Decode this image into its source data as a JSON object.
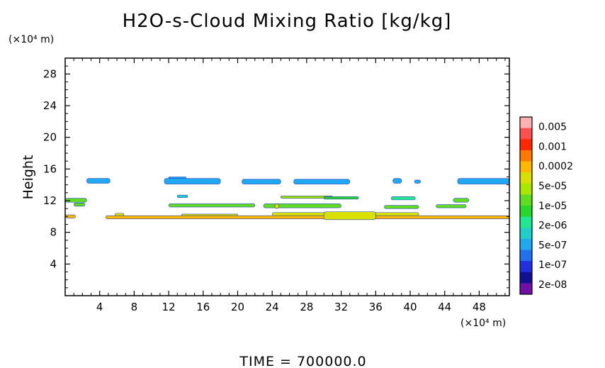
{
  "chart_data": {
    "type": "heatmap",
    "title": "H2O-s-Cloud Mixing Ratio [kg/kg]",
    "ylabel": "Height",
    "xlabel": "",
    "x_unit": "(×10⁴ m)",
    "y_unit": "(×10⁴ m)",
    "xlim": [
      0,
      51.5
    ],
    "ylim": [
      0,
      30
    ],
    "x_ticks": [
      4,
      8,
      12,
      16,
      20,
      24,
      28,
      32,
      36,
      40,
      44,
      48
    ],
    "y_ticks": [
      4,
      8,
      12,
      16,
      20,
      24,
      28
    ],
    "footer": "TIME = 700000.0",
    "colorbar": {
      "labels": [
        "0.005",
        "0.001",
        "0.0002",
        "5e-05",
        "1e-05",
        "2e-06",
        "5e-07",
        "1e-07",
        "2e-08"
      ],
      "colors": [
        "#ffb0b0",
        "#ff5050",
        "#ff2800",
        "#ff7800",
        "#ffb800",
        "#d8e000",
        "#a8e800",
        "#60dd20",
        "#28d828",
        "#20e890",
        "#20d0c8",
        "#20a8f0",
        "#2070f0",
        "#2030e0",
        "#101090",
        "#7010a8"
      ]
    },
    "regions": [
      {
        "x0": 0.0,
        "x1": 1.2,
        "y0": 9.8,
        "y1": 10.2,
        "level": 4
      },
      {
        "x0": 4.7,
        "x1": 51.5,
        "y0": 9.7,
        "y1": 10.1,
        "level": 4
      },
      {
        "x0": 5.8,
        "x1": 6.8,
        "y0": 10.1,
        "y1": 10.4,
        "level": 5
      },
      {
        "x0": 13.5,
        "x1": 20.0,
        "y0": 10.1,
        "y1": 10.3,
        "level": 5
      },
      {
        "x0": 24.0,
        "x1": 41.0,
        "y0": 10.1,
        "y1": 10.5,
        "level": 5
      },
      {
        "x0": 30.0,
        "x1": 36.0,
        "y0": 9.6,
        "y1": 10.6,
        "level": 5
      },
      {
        "x0": 0.0,
        "x1": 2.5,
        "y0": 11.8,
        "y1": 12.3,
        "level": 7
      },
      {
        "x0": 1.0,
        "x1": 2.3,
        "y0": 11.3,
        "y1": 11.7,
        "level": 7
      },
      {
        "x0": 12.0,
        "x1": 22.0,
        "y0": 11.2,
        "y1": 11.6,
        "level": 7
      },
      {
        "x0": 23.0,
        "x1": 32.0,
        "y0": 11.1,
        "y1": 11.6,
        "level": 7
      },
      {
        "x0": 25.0,
        "x1": 31.0,
        "y0": 12.3,
        "y1": 12.6,
        "level": 6
      },
      {
        "x0": 37.0,
        "x1": 41.0,
        "y0": 11.0,
        "y1": 11.4,
        "level": 7
      },
      {
        "x0": 43.0,
        "x1": 46.5,
        "y0": 11.1,
        "y1": 11.5,
        "level": 7
      },
      {
        "x0": 45.0,
        "x1": 46.8,
        "y0": 11.8,
        "y1": 12.3,
        "level": 7
      },
      {
        "x0": 30.0,
        "x1": 34.0,
        "y0": 12.2,
        "y1": 12.5,
        "level": 8
      },
      {
        "x0": 24.3,
        "x1": 24.8,
        "y0": 11.0,
        "y1": 11.6,
        "level": 5
      },
      {
        "x0": 37.8,
        "x1": 40.6,
        "y0": 12.1,
        "y1": 12.5,
        "level": 9
      },
      {
        "x0": 13.0,
        "x1": 14.2,
        "y0": 12.4,
        "y1": 12.7,
        "level": 10
      },
      {
        "x0": 2.5,
        "x1": 5.2,
        "y0": 14.2,
        "y1": 14.8,
        "level": 11
      },
      {
        "x0": 11.5,
        "x1": 18.0,
        "y0": 14.1,
        "y1": 14.8,
        "level": 11
      },
      {
        "x0": 12.0,
        "x1": 14.0,
        "y0": 14.8,
        "y1": 15.0,
        "level": 11
      },
      {
        "x0": 20.5,
        "x1": 25.0,
        "y0": 14.1,
        "y1": 14.7,
        "level": 11
      },
      {
        "x0": 26.5,
        "x1": 33.0,
        "y0": 14.1,
        "y1": 14.7,
        "level": 11
      },
      {
        "x0": 38.0,
        "x1": 39.0,
        "y0": 14.2,
        "y1": 14.8,
        "level": 11
      },
      {
        "x0": 40.5,
        "x1": 41.2,
        "y0": 14.2,
        "y1": 14.6,
        "level": 11
      },
      {
        "x0": 45.5,
        "x1": 51.5,
        "y0": 14.1,
        "y1": 14.8,
        "level": 11
      }
    ]
  }
}
